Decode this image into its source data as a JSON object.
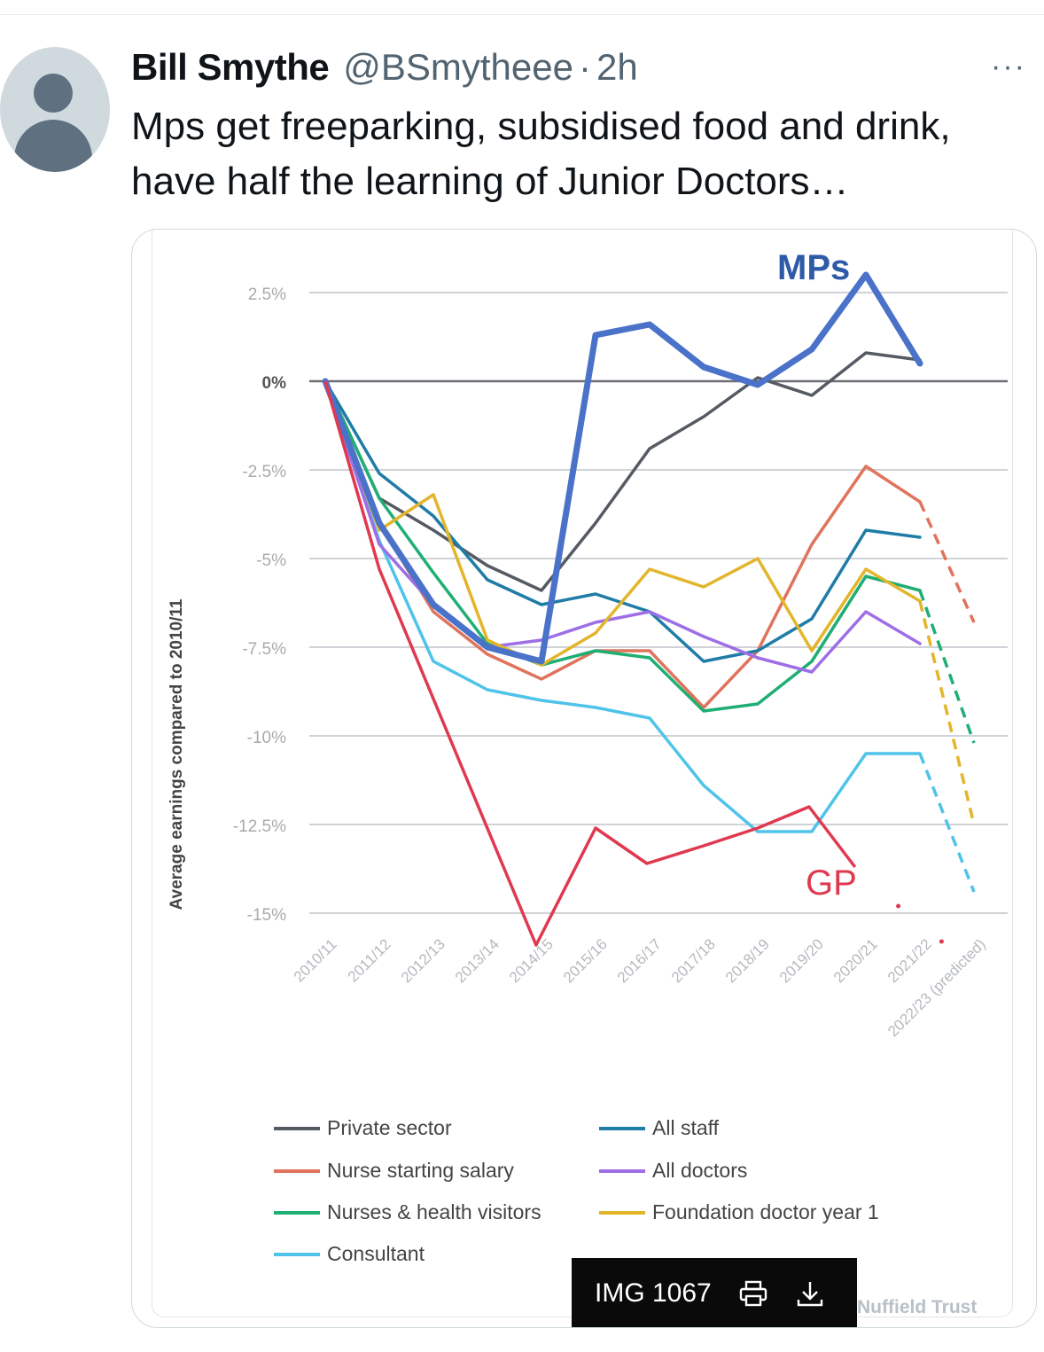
{
  "tweet": {
    "name": "Bill Smythe",
    "handle": "@BSmytheee",
    "separator": "·",
    "time": "2h",
    "more": "···",
    "text": "Mps get freeparking, subsidised food and drink, have half the learning of Junior Doctors…"
  },
  "media": {
    "caption": "IMG 1067",
    "credit": "Nuffield Trust"
  },
  "chart_data": {
    "type": "line",
    "ylabel": "Average earnings compared to 2010/11",
    "xlabel": "",
    "categories": [
      "2010/11",
      "2011/12",
      "2012/13",
      "2013/14",
      "2014/15",
      "2015/16",
      "2016/17",
      "2017/18",
      "2018/19",
      "2019/20",
      "2020/21",
      "2021/22",
      "2022/23 (predicted)"
    ],
    "y_ticks": [
      "2.5%",
      "0%",
      "-2.5%",
      "-5%",
      "-7.5%",
      "-10%",
      "-12.5%",
      "-15%"
    ],
    "y_tick_values": [
      2.5,
      0,
      -2.5,
      -5,
      -7.5,
      -10,
      -12.5,
      -15
    ],
    "ylim": [
      -15.6,
      3.2
    ],
    "grid": true,
    "legend_position": "bottom",
    "annotations": [
      "MPs",
      "GP"
    ],
    "series": [
      {
        "name": "Private sector",
        "color": "#555a63",
        "values": [
          0,
          -3.3,
          -4.2,
          -5.2,
          -5.9,
          -4.0,
          -1.9,
          -1.0,
          0.1,
          -0.4,
          0.8,
          0.6,
          null
        ]
      },
      {
        "name": "Nurse starting salary",
        "color": "#e0735c",
        "values": [
          0,
          -4.0,
          -6.5,
          -7.7,
          -8.4,
          -7.6,
          -7.6,
          -9.2,
          -7.6,
          -4.6,
          -2.4,
          -3.4,
          -6.8
        ],
        "predicted_from": 11
      },
      {
        "name": "Nurses & health visitors",
        "color": "#1fae73",
        "values": [
          0,
          -3.3,
          -5.4,
          -7.4,
          -8.0,
          -7.6,
          -7.8,
          -9.3,
          -9.1,
          -7.9,
          -5.5,
          -5.9,
          -10.2
        ],
        "predicted_from": 11
      },
      {
        "name": "Consultant",
        "color": "#4fc3ea",
        "values": [
          0,
          -4.5,
          -7.9,
          -8.7,
          -9.0,
          -9.2,
          -9.5,
          -11.4,
          -12.7,
          -12.7,
          -10.5,
          -10.5,
          -14.4
        ],
        "predicted_from": 11
      },
      {
        "name": "All staff",
        "color": "#1f7ca6",
        "values": [
          0,
          -2.6,
          -3.8,
          -5.6,
          -6.3,
          -6.0,
          -6.5,
          -7.9,
          -7.6,
          -6.7,
          -4.2,
          -4.4,
          null
        ]
      },
      {
        "name": "All doctors",
        "color": "#9e6ee6",
        "values": [
          0,
          -4.6,
          -6.3,
          -7.5,
          -7.3,
          -6.8,
          -6.5,
          -7.2,
          -7.8,
          -8.2,
          -6.5,
          -7.4,
          null
        ]
      },
      {
        "name": "Foundation doctor year 1",
        "color": "#e3b52b",
        "values": [
          0,
          -4.2,
          -3.2,
          -7.3,
          -8.0,
          -7.1,
          -5.3,
          -5.8,
          -5.0,
          -7.6,
          -5.3,
          -6.2,
          -12.5
        ],
        "predicted_from": 11
      },
      {
        "name": "MPs",
        "color": "#4a72c9",
        "values": [
          0,
          -4.0,
          -6.3,
          -7.5,
          -7.9,
          1.3,
          1.6,
          0.4,
          -0.1,
          0.9,
          3.0,
          0.5,
          null
        ],
        "thick": true
      },
      {
        "name": "GP",
        "color": "#e0394f",
        "values": [
          0,
          -5.3,
          null,
          null,
          -15.9,
          -12.6,
          -13.6,
          -13.1,
          -12.6,
          -12.0,
          -13.7,
          -14.8,
          -15.8
        ],
        "points_x": [
          0,
          1.0,
          3.9,
          5.0,
          5.95,
          7.0,
          8.0,
          8.95,
          9.8,
          10.6,
          11.4
        ],
        "points_y": [
          0,
          -5.3,
          -15.9,
          -12.6,
          -13.6,
          -13.1,
          -12.6,
          -12.0,
          -13.7,
          -14.8,
          -15.8
        ]
      }
    ]
  }
}
